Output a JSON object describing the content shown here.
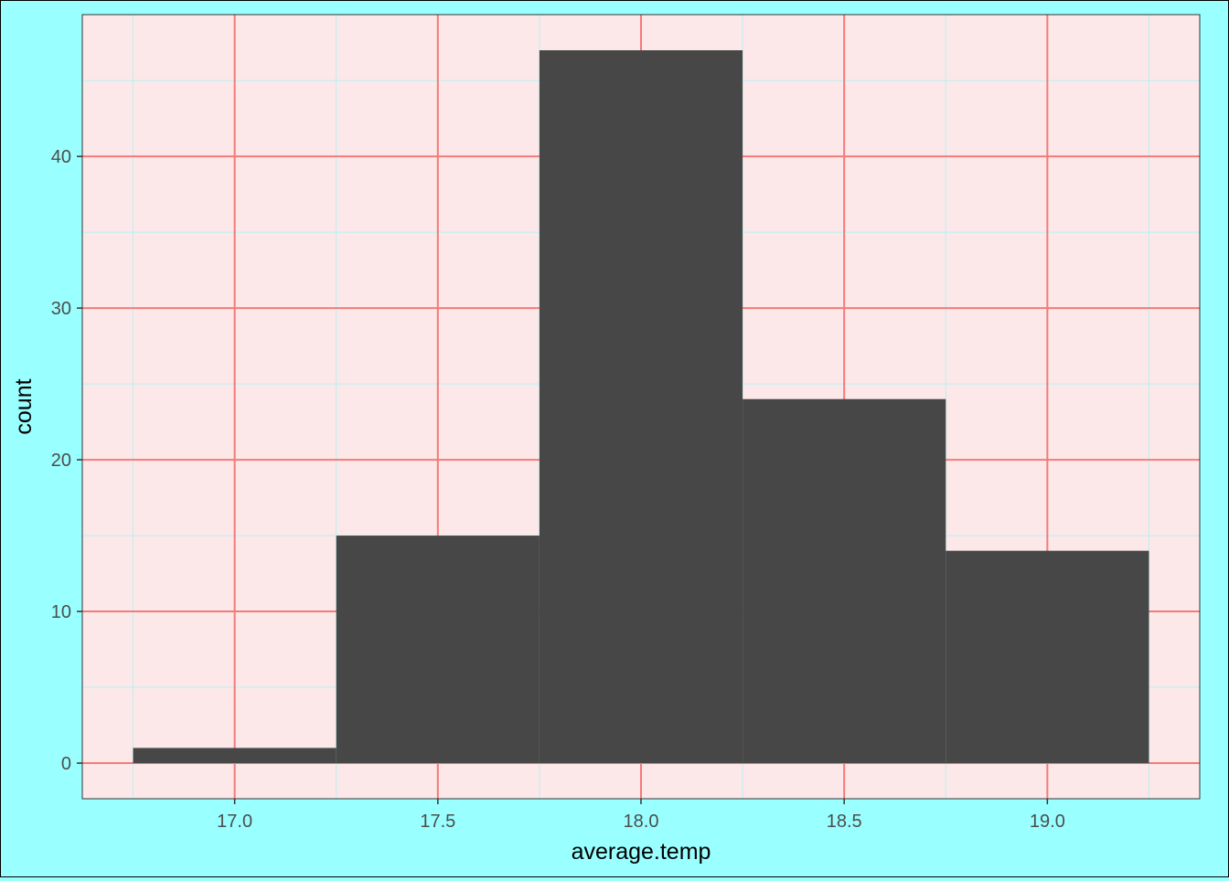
{
  "chart_data": {
    "type": "bar",
    "subtype": "histogram",
    "xlabel": "average.temp",
    "ylabel": "count",
    "bins": [
      {
        "x_start": 16.75,
        "x_end": 17.25,
        "count": 1
      },
      {
        "x_start": 17.25,
        "x_end": 17.75,
        "count": 15
      },
      {
        "x_start": 17.75,
        "x_end": 18.25,
        "count": 47
      },
      {
        "x_start": 18.25,
        "x_end": 18.75,
        "count": 24
      },
      {
        "x_start": 18.75,
        "x_end": 19.25,
        "count": 14
      }
    ],
    "x_ticks": [
      "17.0",
      "17.5",
      "18.0",
      "18.5",
      "19.0"
    ],
    "y_ticks": [
      "0",
      "10",
      "20",
      "30",
      "40"
    ],
    "xlim": [
      16.625,
      19.375
    ],
    "ylim": [
      -2.35,
      49.35
    ],
    "x_minor_ticks": [
      16.75,
      17.25,
      17.75,
      18.25,
      18.75,
      19.25
    ],
    "y_minor_ticks": [
      5,
      15,
      25,
      35,
      45
    ],
    "grid": true,
    "colors": {
      "page_background": "#99ffff",
      "panel_background": "#fce8e8",
      "major_grid": "#f47a7a",
      "minor_grid": "#b8f0f5",
      "bar_fill": "#474747",
      "axis_text": "#4d4d4d",
      "axis_title": "#000000"
    }
  }
}
